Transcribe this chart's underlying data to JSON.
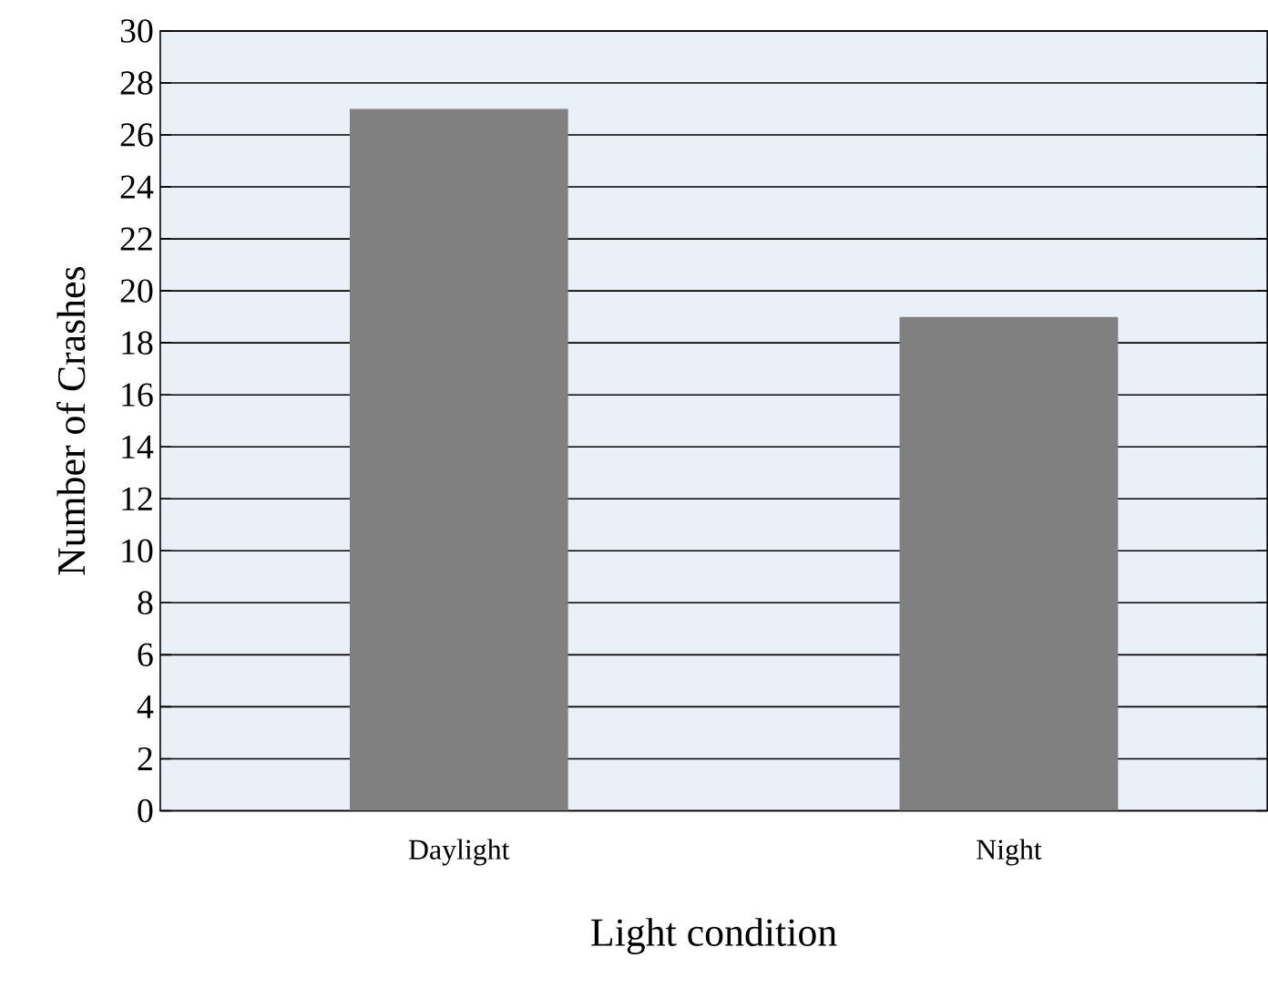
{
  "chart_data": {
    "type": "bar",
    "xlabel": "Light condition",
    "ylabel": "Number of Crashes",
    "categories": [
      "Daylight",
      "Night"
    ],
    "values": [
      27,
      19
    ],
    "color": "#808080",
    "ylim": [
      0,
      30
    ],
    "yticks": [
      0,
      2,
      4,
      6,
      8,
      10,
      12,
      14,
      16,
      18,
      20,
      22,
      24,
      26,
      28,
      30
    ],
    "grid": "y"
  }
}
